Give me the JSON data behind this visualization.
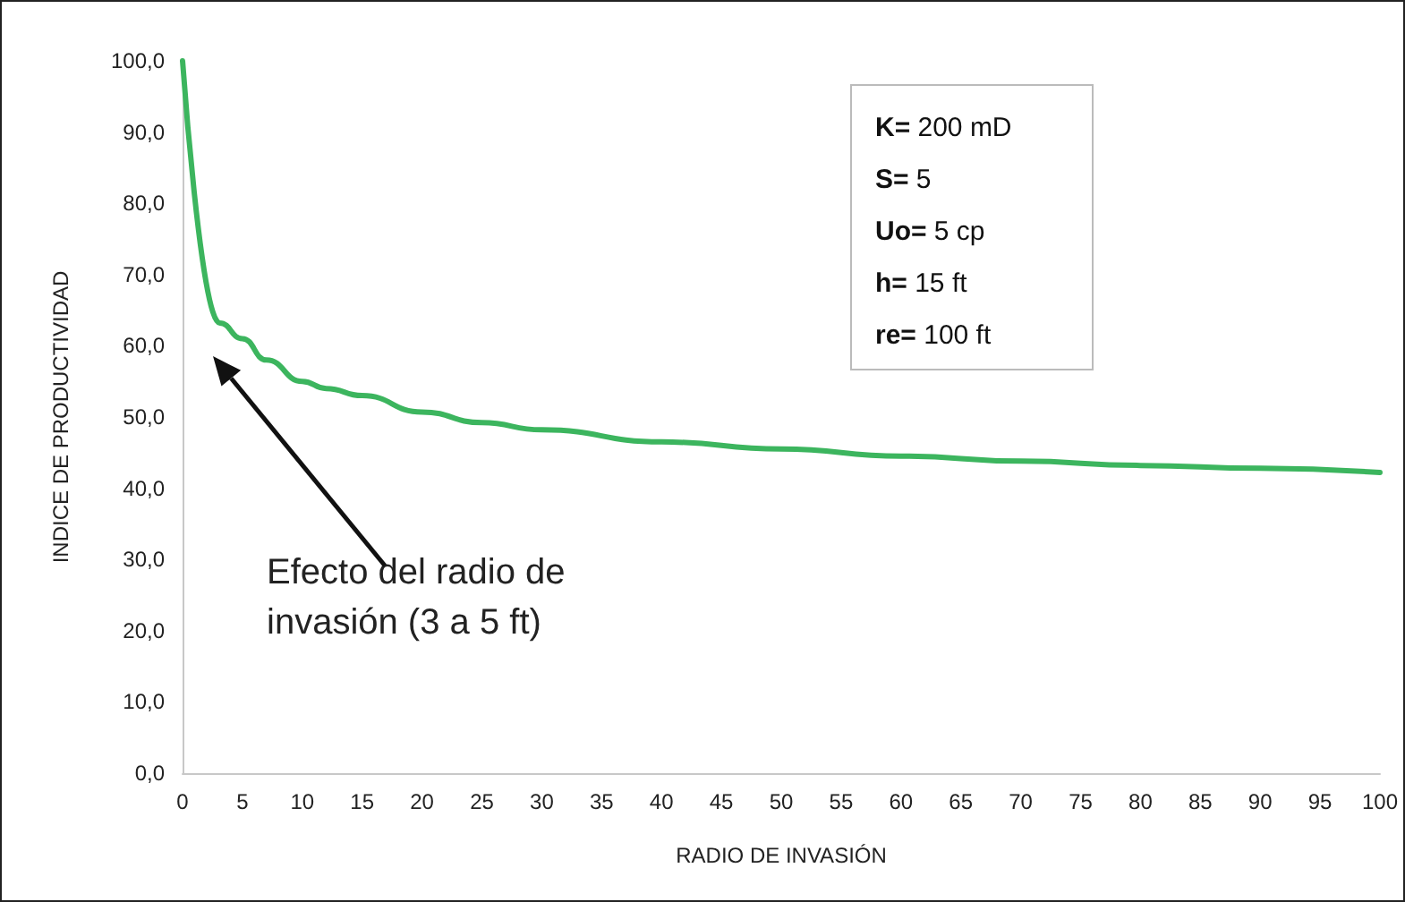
{
  "chart_data": {
    "type": "line",
    "xlabel": "RADIO DE INVASIÓN",
    "ylabel": "INDICE DE PRODUCTIVIDAD",
    "x": [
      0,
      3.1,
      5,
      7,
      10,
      12,
      15,
      20,
      25,
      30,
      40,
      50,
      60,
      70,
      80,
      90,
      100
    ],
    "series": [
      {
        "color": "#3cb55e",
        "values": [
          100,
          63.2,
          61,
          58,
          55,
          54,
          53,
          50.7,
          49.2,
          48.2,
          46.5,
          45.5,
          44.5,
          43.8,
          43.2,
          42.8,
          42.2
        ]
      }
    ],
    "xlim": [
      0,
      100
    ],
    "xticks": [
      0,
      5,
      10,
      15,
      20,
      25,
      30,
      35,
      40,
      45,
      50,
      55,
      60,
      65,
      70,
      75,
      80,
      85,
      90,
      95,
      100
    ],
    "ylim": [
      0,
      100
    ],
    "yticks": [
      {
        "value": 0,
        "label": "0,0"
      },
      {
        "value": 10,
        "label": "10,0"
      },
      {
        "value": 20,
        "label": "20,0"
      },
      {
        "value": 30,
        "label": "30,0"
      },
      {
        "value": 40,
        "label": "40,0"
      },
      {
        "value": 50,
        "label": "50,0"
      },
      {
        "value": 60,
        "label": "60,0"
      },
      {
        "value": 70,
        "label": "70,0"
      },
      {
        "value": 80,
        "label": "80,0"
      },
      {
        "value": 90,
        "label": "90,0"
      },
      {
        "value": 100,
        "label": "100,0"
      }
    ],
    "grid": false,
    "marker": "none",
    "line_style": "solid",
    "annotations": [
      "Efecto del radio de invasión (3 a 5 ft)",
      "K= 200 mD",
      "S= 5",
      "Uo= 5 cp",
      "h= 15 ft",
      "re= 100 ft"
    ]
  }
}
